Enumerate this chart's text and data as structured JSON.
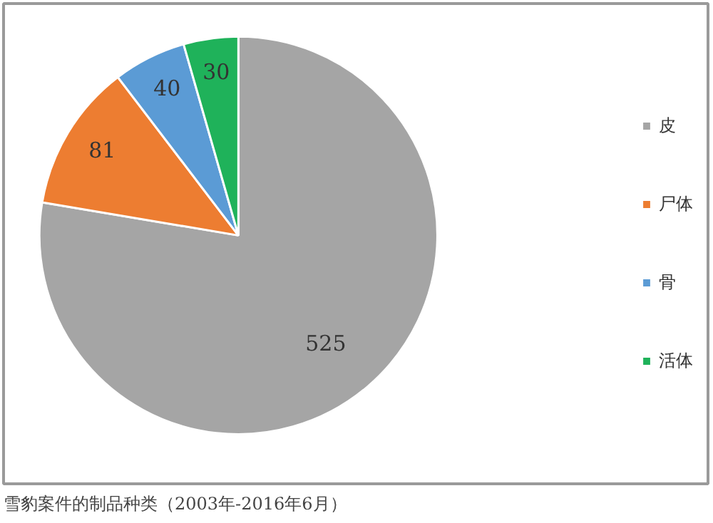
{
  "chart_data": {
    "type": "pie",
    "categories": [
      "皮",
      "尸体",
      "骨",
      "活体"
    ],
    "values": [
      525,
      81,
      40,
      30
    ],
    "colors": [
      "#a5a5a5",
      "#ed7d31",
      "#5b9bd5",
      "#1fb25a"
    ],
    "data_labels": true,
    "legend": "right",
    "annotations": [
      "雪豹案件的制品种类（2003年-2016年6月）"
    ]
  }
}
